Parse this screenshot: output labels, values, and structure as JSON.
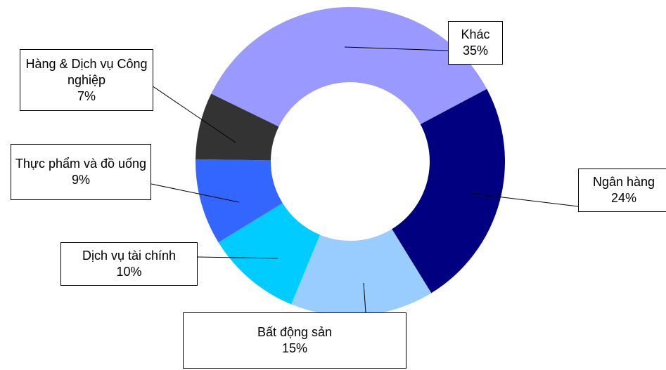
{
  "chart_data": {
    "type": "donut",
    "categories": [
      "Khác",
      "Ngân hàng",
      "Bất động sản",
      "Dịch vụ tài chính",
      "Thực phẩm và đồ uống",
      "Hàng & Dịch vụ Công nghiệp"
    ],
    "values": [
      35,
      24,
      15,
      10,
      9,
      7
    ],
    "value_labels": [
      "35%",
      "24%",
      "15%",
      "10%",
      "9%",
      "7%"
    ],
    "colors": [
      "#9999ff",
      "#000080",
      "#99ccff",
      "#00ccff",
      "#3366ff",
      "#333333"
    ]
  }
}
